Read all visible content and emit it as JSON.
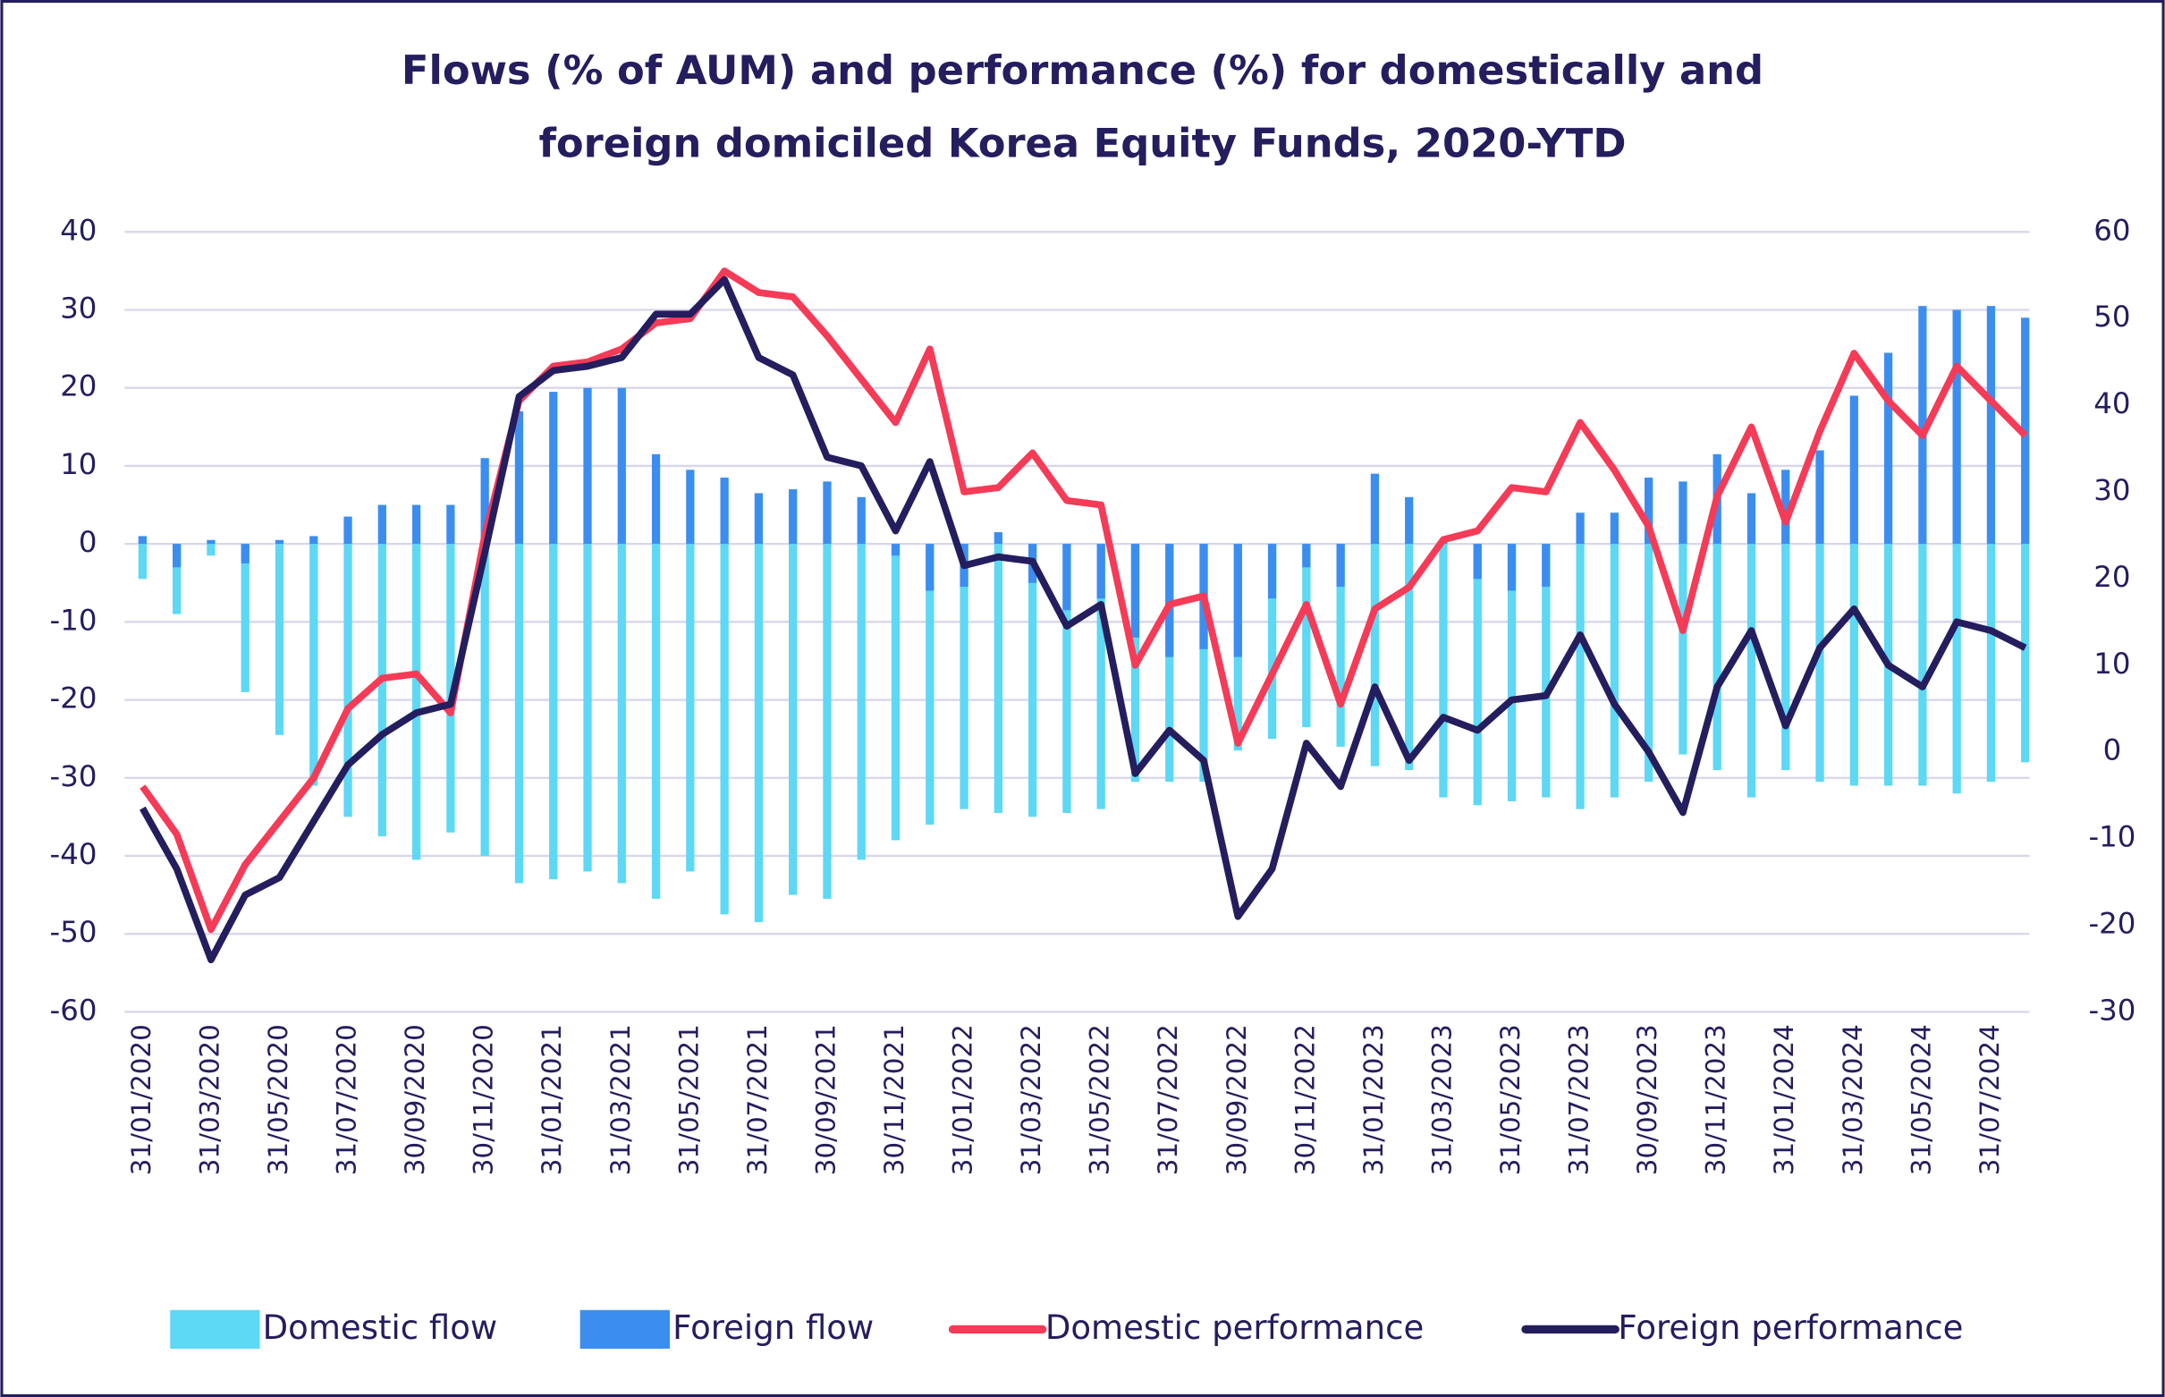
{
  "chart_data": {
    "type": "bar",
    "title": [
      "Flows (% of AUM) and performance (%) for domestically and",
      "foreign domiciled Korea Equity Funds, 2020-YTD"
    ],
    "categories": [
      "31/01/2020",
      null,
      "31/03/2020",
      null,
      "31/05/2020",
      null,
      "31/07/2020",
      null,
      "30/09/2020",
      null,
      "30/11/2020",
      null,
      "31/01/2021",
      null,
      "31/03/2021",
      null,
      "31/05/2021",
      null,
      "31/07/2021",
      null,
      "30/09/2021",
      null,
      "30/11/2021",
      null,
      "31/01/2022",
      null,
      "31/03/2022",
      null,
      "31/05/2022",
      null,
      "31/07/2022",
      null,
      "30/09/2022",
      null,
      "30/11/2022",
      null,
      "31/01/2023",
      null,
      "31/03/2023",
      null,
      "31/05/2023",
      null,
      "31/07/2023",
      null,
      "30/09/2023",
      null,
      "30/11/2023",
      null,
      "31/01/2024",
      null,
      "31/03/2024",
      null,
      "31/05/2024",
      null,
      "31/07/2024",
      null
    ],
    "series": [
      {
        "name": "Domestic flow",
        "type": "bar",
        "color": "#5dd8f5",
        "values": [
          -4.5,
          -9,
          -1.5,
          -19,
          -24.5,
          -31,
          -35,
          -37.5,
          -40.5,
          -37,
          -40,
          -43.5,
          -43,
          -42,
          -43.5,
          -45.5,
          -42,
          -47.5,
          -48.5,
          -45,
          -45.5,
          -40.5,
          -38,
          -36,
          -34,
          -34.5,
          -35,
          -34.5,
          -34,
          -30.5,
          -30.5,
          -30.5,
          -26.5,
          -25,
          -23.5,
          -26,
          -28.5,
          -29,
          -32.5,
          -33.5,
          -33,
          -32.5,
          -34,
          -32.5,
          -30.5,
          -27,
          -29,
          -32.5,
          -29,
          -30.5,
          -31,
          -31,
          -31,
          -32,
          -30.5,
          -28
        ]
      },
      {
        "name": "Foreign flow",
        "type": "bar",
        "color": "#3b8ef0",
        "values": [
          1,
          -3,
          0.5,
          -2.5,
          0.5,
          1,
          3.5,
          5,
          5,
          5,
          11,
          17,
          19.5,
          20,
          20,
          11.5,
          9.5,
          8.5,
          6.5,
          7,
          8,
          6,
          -1.5,
          -6,
          -5.5,
          1.5,
          -5,
          -8.5,
          -7,
          -12,
          -14.5,
          -13.5,
          -14.5,
          -7,
          -3,
          -5.5,
          9,
          6,
          0.5,
          -4.5,
          -6,
          -5.5,
          4,
          4,
          8.5,
          8,
          11.5,
          6.5,
          9.5,
          12,
          19,
          24.5,
          30.5,
          30,
          30.5,
          29
        ]
      },
      {
        "name": "Domestic performance",
        "type": "line",
        "axis": "y2",
        "color": "#f53b57",
        "values": [
          -4,
          -9.5,
          -20.5,
          -13,
          -8,
          -3,
          5,
          8.5,
          9,
          4.5,
          25,
          40.5,
          44.5,
          45,
          46.5,
          49.5,
          50,
          55.5,
          53,
          52.5,
          48,
          43,
          38,
          46.5,
          30,
          30.5,
          34.5,
          29,
          28.5,
          10,
          17,
          18,
          1,
          9,
          17,
          5.5,
          16.5,
          19,
          24.5,
          25.5,
          30.5,
          30,
          38,
          32.5,
          26,
          14,
          29.5,
          37.5,
          26.5,
          37,
          46,
          40.5,
          36.5,
          44.5,
          40.5,
          36.5
        ]
      },
      {
        "name": "Foreign performance",
        "type": "line",
        "axis": "y2",
        "color": "#241d5e",
        "values": [
          -6.5,
          -13.5,
          -24,
          -16.5,
          -14.5,
          -8,
          -1.5,
          2,
          4.5,
          5.5,
          23,
          41,
          44,
          44.5,
          45.5,
          50.5,
          50.5,
          54.5,
          45.5,
          43.5,
          34,
          33,
          25.5,
          33.5,
          21.5,
          22.5,
          22,
          14.5,
          17,
          -2.5,
          2.5,
          -1,
          -19,
          -13.5,
          1,
          -4,
          7.5,
          -1,
          4,
          2.5,
          6,
          6.5,
          13.5,
          5.5,
          0,
          -7,
          7.5,
          14,
          3,
          12,
          16.5,
          10,
          7.5,
          15,
          14,
          12
        ]
      }
    ],
    "ylim": [
      -60,
      40
    ],
    "yticks": [
      -60,
      -50,
      -40,
      -30,
      -20,
      -10,
      0,
      10,
      20,
      30,
      40
    ],
    "y2lim": [
      -30,
      60
    ],
    "y2ticks": [
      -30,
      -20,
      -10,
      0,
      10,
      20,
      30,
      40,
      50,
      60
    ],
    "grid": true
  }
}
